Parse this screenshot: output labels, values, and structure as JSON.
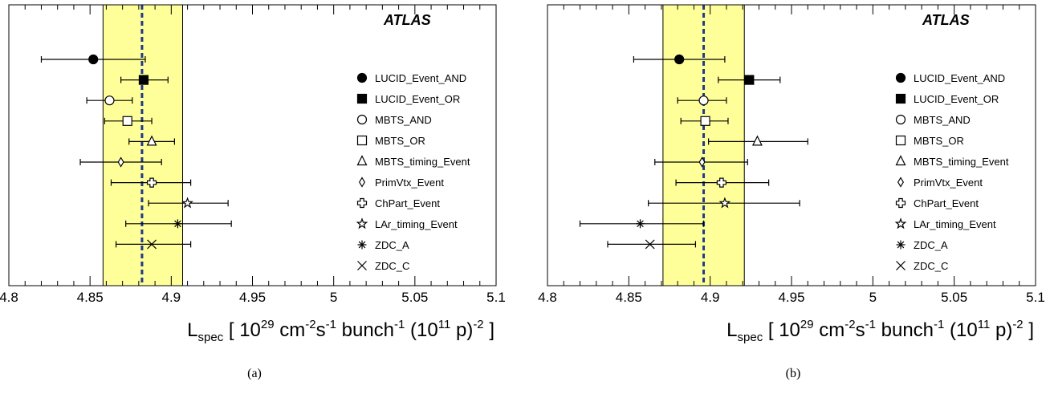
{
  "chart_data": [
    {
      "type": "scatter",
      "panel_label": "(a)",
      "experiment_label": "ATLAS",
      "xlabel": "L_spec [ 10^29 cm^-2 s^-1 bunch^-1 (10^11 p)^-2 ]",
      "xlim": [
        4.8,
        5.1
      ],
      "xticks": [
        "4.8",
        "4.85",
        "4.9",
        "4.95",
        "5",
        "5.05",
        "5.1"
      ],
      "band": {
        "low": 4.858,
        "high": 4.907,
        "color": "#ffff99"
      },
      "mean_line": 4.882,
      "series": [
        {
          "name": "LUCID_Event_AND",
          "marker": "filled-circle",
          "value": 4.852,
          "err_low": 4.82,
          "err_high": 4.884
        },
        {
          "name": "LUCID_Event_OR",
          "marker": "filled-square",
          "value": 4.883,
          "err_low": 4.869,
          "err_high": 4.898
        },
        {
          "name": "MBTS_AND",
          "marker": "open-circle",
          "value": 4.862,
          "err_low": 4.848,
          "err_high": 4.876
        },
        {
          "name": "MBTS_OR",
          "marker": "open-square",
          "value": 4.873,
          "err_low": 4.859,
          "err_high": 4.888
        },
        {
          "name": "MBTS_timing_Event",
          "marker": "open-triangle",
          "value": 4.888,
          "err_low": 4.874,
          "err_high": 4.902
        },
        {
          "name": "PrimVtx_Event",
          "marker": "open-diamond",
          "value": 4.869,
          "err_low": 4.844,
          "err_high": 4.894
        },
        {
          "name": "ChPart_Event",
          "marker": "open-cross",
          "value": 4.888,
          "err_low": 4.863,
          "err_high": 4.912
        },
        {
          "name": "LAr_timing_Event",
          "marker": "open-star",
          "value": 4.91,
          "err_low": 4.886,
          "err_high": 4.935
        },
        {
          "name": "ZDC_A",
          "marker": "asterisk",
          "value": 4.904,
          "err_low": 4.872,
          "err_high": 4.937
        },
        {
          "name": "ZDC_C",
          "marker": "x-cross",
          "value": 4.888,
          "err_low": 4.866,
          "err_high": 4.912
        }
      ]
    },
    {
      "type": "scatter",
      "panel_label": "(b)",
      "experiment_label": "ATLAS",
      "xlabel": "L_spec [ 10^29 cm^-2 s^-1 bunch^-1 (10^11 p)^-2 ]",
      "xlim": [
        4.8,
        5.1
      ],
      "xticks": [
        "4.8",
        "4.85",
        "4.9",
        "4.95",
        "5",
        "5.05",
        "5.1"
      ],
      "band": {
        "low": 4.871,
        "high": 4.921,
        "color": "#ffff99"
      },
      "mean_line": 4.896,
      "series": [
        {
          "name": "LUCID_Event_AND",
          "marker": "filled-circle",
          "value": 4.881,
          "err_low": 4.853,
          "err_high": 4.909
        },
        {
          "name": "LUCID_Event_OR",
          "marker": "filled-square",
          "value": 4.924,
          "err_low": 4.905,
          "err_high": 4.943
        },
        {
          "name": "MBTS_AND",
          "marker": "open-circle",
          "value": 4.896,
          "err_low": 4.88,
          "err_high": 4.91
        },
        {
          "name": "MBTS_OR",
          "marker": "open-square",
          "value": 4.897,
          "err_low": 4.882,
          "err_high": 4.911
        },
        {
          "name": "MBTS_timing_Event",
          "marker": "open-triangle",
          "value": 4.929,
          "err_low": 4.899,
          "err_high": 4.96
        },
        {
          "name": "PrimVtx_Event",
          "marker": "open-diamond",
          "value": 4.895,
          "err_low": 4.866,
          "err_high": 4.923
        },
        {
          "name": "ChPart_Event",
          "marker": "open-cross",
          "value": 4.907,
          "err_low": 4.879,
          "err_high": 4.936
        },
        {
          "name": "LAr_timing_Event",
          "marker": "open-star",
          "value": 4.909,
          "err_low": 4.862,
          "err_high": 4.955
        },
        {
          "name": "ZDC_A",
          "marker": "asterisk",
          "value": 4.857,
          "err_low": 4.82,
          "err_high": 4.896
        },
        {
          "name": "ZDC_C",
          "marker": "x-cross",
          "value": 4.863,
          "err_low": 4.837,
          "err_high": 4.891
        }
      ]
    }
  ],
  "labels": {
    "atlas": "ATLAS",
    "xlabel_parts": [
      "L",
      "spec",
      " [ 10",
      "29",
      "  cm",
      "-2",
      "s",
      "-1",
      " bunch",
      "-1",
      " (10",
      "11",
      " p)",
      "-2",
      " ]"
    ]
  }
}
